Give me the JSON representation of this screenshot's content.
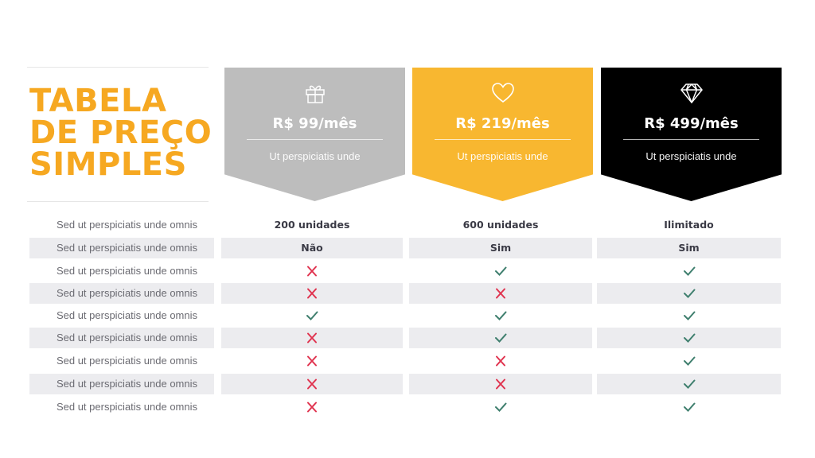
{
  "title": {
    "lines": [
      "TABELA",
      "DE PREÇO",
      "SIMPLES"
    ]
  },
  "plans": [
    {
      "icon": "gift-icon",
      "price": "R$ 99/mês",
      "subtitle": "Ut perspiciatis unde",
      "color": "#bdbdbd"
    },
    {
      "icon": "heart-icon",
      "price": "R$ 219/mês",
      "subtitle": "Ut perspiciatis unde",
      "color": "#f8b730"
    },
    {
      "icon": "diamond-icon",
      "price": "R$ 499/mês",
      "subtitle": "Ut perspiciatis unde",
      "color": "#000000"
    }
  ],
  "colors": {
    "accent": "#f6a821",
    "check": "#3f7f6e",
    "cross": "#e0334f",
    "row_shade": "#ececef"
  },
  "rows": [
    {
      "label": "Sed ut perspiciatis unde omnis",
      "cells": [
        {
          "type": "text",
          "value": "200 unidades"
        },
        {
          "type": "text",
          "value": "600 unidades"
        },
        {
          "type": "text",
          "value": "Ilimitado"
        }
      ]
    },
    {
      "label": "Sed ut perspiciatis unde omnis",
      "cells": [
        {
          "type": "text",
          "value": "Não"
        },
        {
          "type": "text",
          "value": "Sim"
        },
        {
          "type": "text",
          "value": "Sim"
        }
      ]
    },
    {
      "label": "Sed ut perspiciatis unde omnis",
      "cells": [
        {
          "type": "cross"
        },
        {
          "type": "check"
        },
        {
          "type": "check"
        }
      ]
    },
    {
      "label": "Sed ut perspiciatis unde omnis",
      "cells": [
        {
          "type": "cross"
        },
        {
          "type": "cross"
        },
        {
          "type": "check"
        }
      ]
    },
    {
      "label": "Sed ut perspiciatis unde omnis",
      "cells": [
        {
          "type": "check"
        },
        {
          "type": "check"
        },
        {
          "type": "check"
        }
      ]
    },
    {
      "label": "Sed ut perspiciatis unde omnis",
      "cells": [
        {
          "type": "cross"
        },
        {
          "type": "check"
        },
        {
          "type": "check"
        }
      ]
    },
    {
      "label": "Sed ut perspiciatis unde omnis",
      "cells": [
        {
          "type": "cross"
        },
        {
          "type": "cross"
        },
        {
          "type": "check"
        }
      ]
    },
    {
      "label": "Sed ut perspiciatis unde omnis",
      "cells": [
        {
          "type": "cross"
        },
        {
          "type": "cross"
        },
        {
          "type": "check"
        }
      ]
    },
    {
      "label": "Sed ut perspiciatis unde omnis",
      "cells": [
        {
          "type": "cross"
        },
        {
          "type": "check"
        },
        {
          "type": "check"
        }
      ]
    }
  ]
}
